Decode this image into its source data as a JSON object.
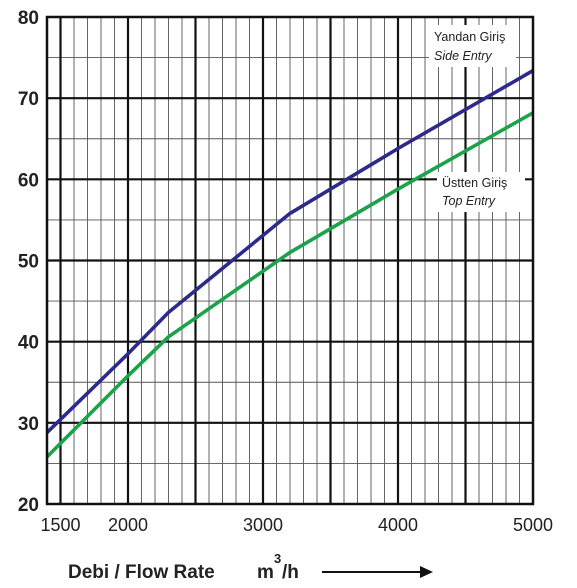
{
  "chart_data": {
    "type": "line",
    "xlabel": "Debi / Flow Rate",
    "xlabel_unit_base": "m",
    "xlabel_unit_exp": "3",
    "xlabel_unit_tail": "/h",
    "ylabel": "",
    "xlim": [
      1400,
      5000
    ],
    "ylim": [
      20,
      80
    ],
    "x_ticks": [
      1500,
      2000,
      3000,
      4000,
      5000
    ],
    "y_ticks": [
      20,
      30,
      40,
      50,
      60,
      70,
      80
    ],
    "grid": true,
    "series": [
      {
        "name": "Yandan Giriş",
        "name_alt": "Side Entry",
        "color": "#2e2a8c",
        "points": [
          {
            "x": 1400,
            "y": 28.8
          },
          {
            "x": 2000,
            "y": 38.5
          },
          {
            "x": 2300,
            "y": 43.6
          },
          {
            "x": 3200,
            "y": 55.8
          },
          {
            "x": 4000,
            "y": 63.8
          },
          {
            "x": 5000,
            "y": 73.4
          }
        ]
      },
      {
        "name": "Üstten Giriş",
        "name_alt": "Top Entry",
        "color": "#1aa34a",
        "points": [
          {
            "x": 1400,
            "y": 25.8
          },
          {
            "x": 2000,
            "y": 35.8
          },
          {
            "x": 2300,
            "y": 40.6
          },
          {
            "x": 3200,
            "y": 51.0
          },
          {
            "x": 4000,
            "y": 58.8
          },
          {
            "x": 5000,
            "y": 68.2
          }
        ]
      }
    ]
  }
}
